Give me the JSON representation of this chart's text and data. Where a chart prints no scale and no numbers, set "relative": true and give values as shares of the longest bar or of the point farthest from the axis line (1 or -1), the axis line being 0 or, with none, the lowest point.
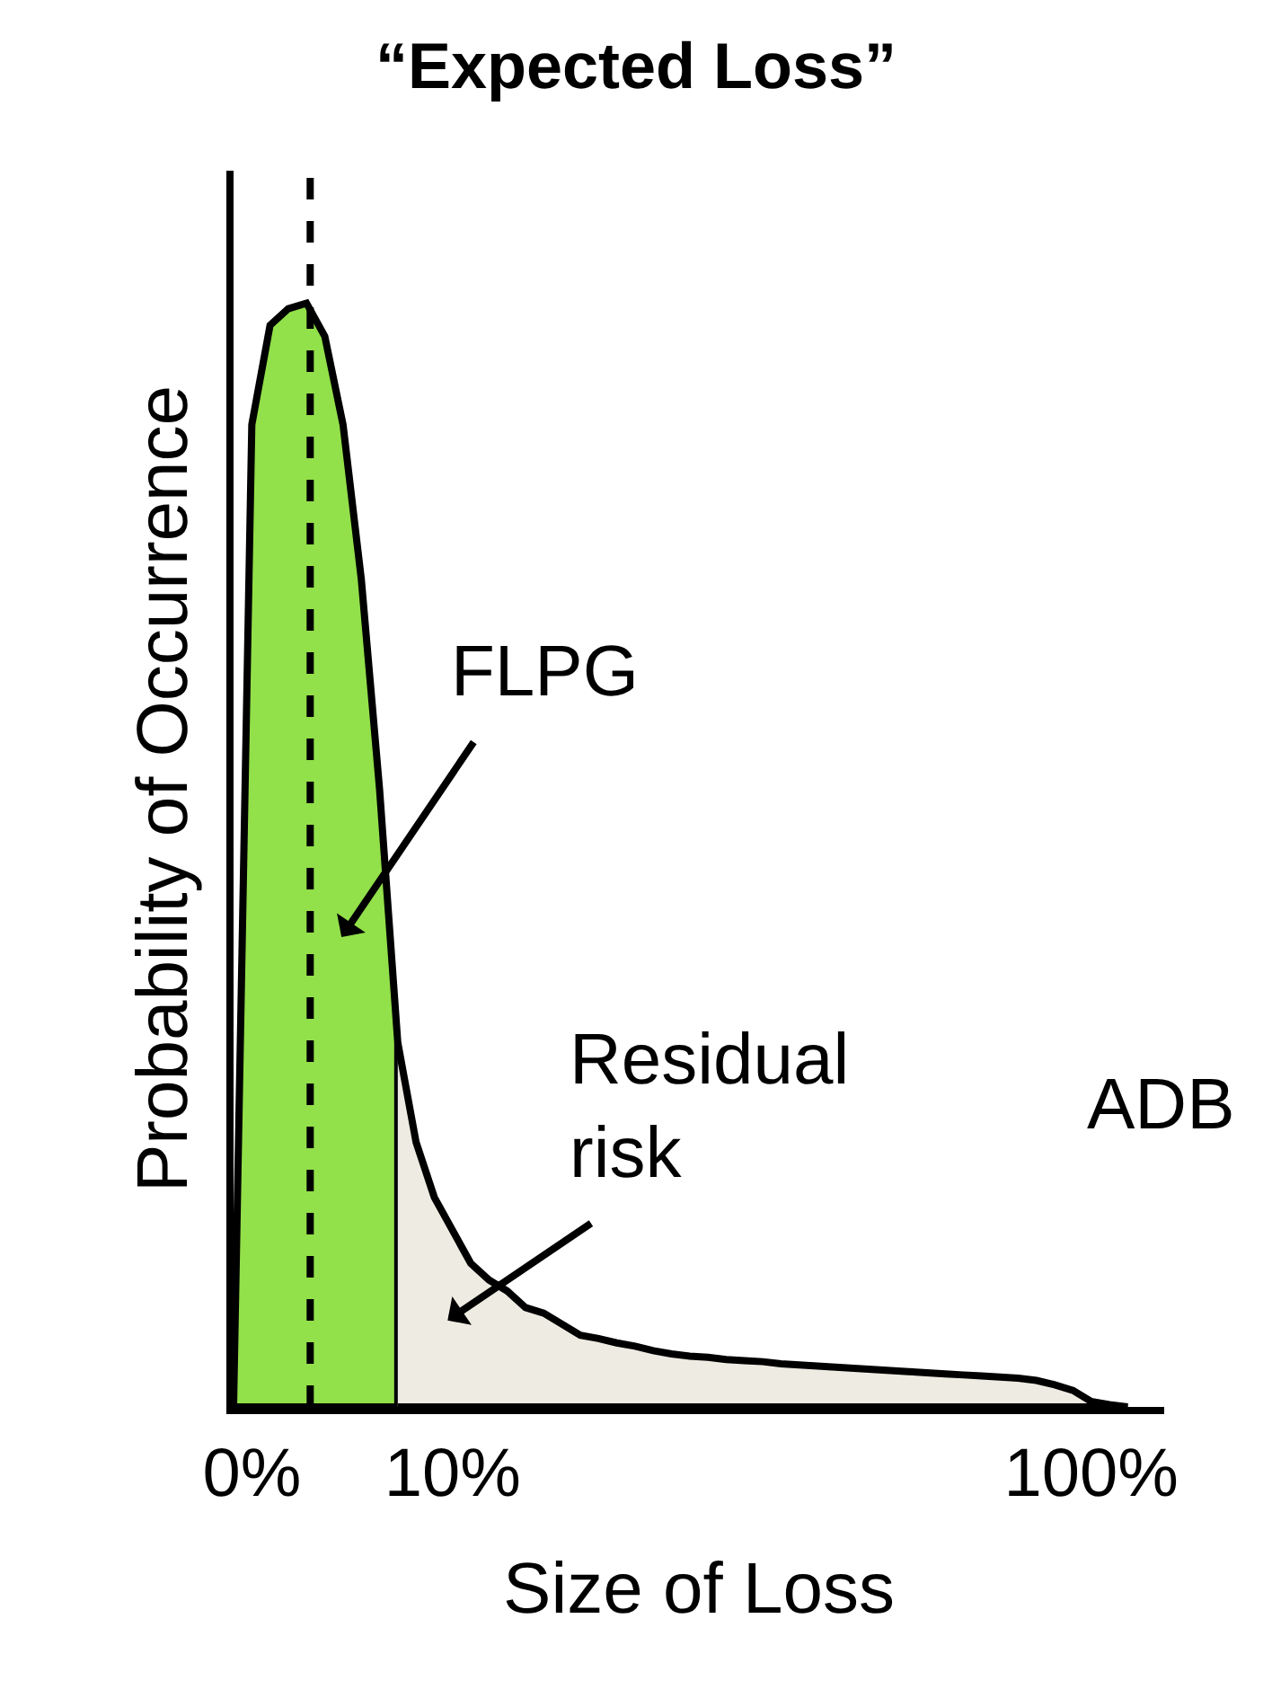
{
  "chart_data": {
    "type": "area",
    "relative": true,
    "title": "“Expected Loss”",
    "xlabel": "Size of Loss",
    "ylabel": "Probability of Occurrence",
    "categories": [
      null,
      "0%",
      null,
      null,
      null,
      null,
      null,
      null,
      null,
      null,
      null,
      null,
      "10%",
      null,
      null,
      null,
      null,
      null,
      null,
      null,
      null,
      null,
      null,
      null,
      null,
      null,
      null,
      null,
      null,
      null,
      null,
      null,
      null,
      null,
      null,
      null,
      null,
      null,
      null,
      null,
      null,
      null,
      null,
      null,
      null,
      null,
      null,
      "100%",
      null,
      null
    ],
    "series": [
      {
        "color": "#92e04a",
        "values": [
          0,
          0.89,
          0.98,
          0.995,
          1.0,
          0.97,
          0.89,
          0.75,
          0.56,
          0.33,
          null,
          null,
          null,
          null,
          null,
          null,
          null,
          null,
          null,
          null,
          null,
          null,
          null,
          null,
          null,
          null,
          null,
          null,
          null,
          null,
          null,
          null,
          null,
          null,
          null,
          null,
          null,
          null,
          null,
          null,
          null,
          null,
          null,
          null,
          null,
          null,
          null,
          null,
          null,
          null
        ]
      },
      {
        "color": "#eeebe2",
        "values": [
          null,
          null,
          null,
          null,
          null,
          null,
          null,
          null,
          null,
          0.33,
          0.24,
          0.19,
          0.16,
          0.13,
          0.115,
          0.105,
          0.09,
          0.085,
          0.075,
          0.065,
          0.062,
          0.058,
          0.055,
          0.051,
          0.048,
          0.046,
          0.045,
          0.043,
          0.042,
          0.041,
          0.039,
          0.038,
          0.037,
          0.036,
          0.035,
          0.034,
          0.033,
          0.032,
          0.031,
          0.03,
          0.029,
          0.028,
          0.027,
          0.026,
          0.024,
          0.02,
          0.015,
          0.005,
          0.002,
          0
        ]
      }
    ],
    "annotations": [
      "FLPG",
      "Residual\nrisk",
      "ADB"
    ]
  }
}
